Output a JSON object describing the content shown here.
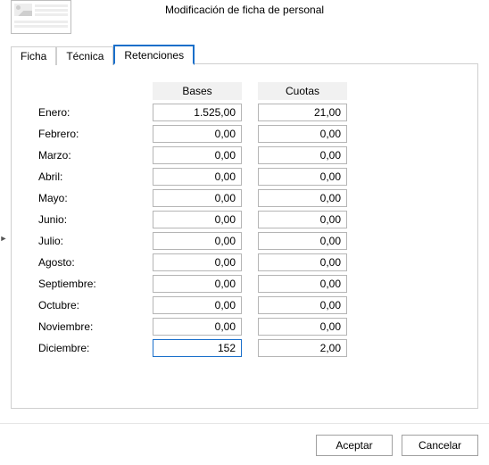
{
  "window": {
    "title": "Modificación de ficha de personal"
  },
  "tabs": {
    "items": [
      {
        "label": "Ficha",
        "active": false
      },
      {
        "label": "Técnica",
        "active": false
      },
      {
        "label": "Retenciones",
        "active": true
      }
    ]
  },
  "table": {
    "headers": {
      "bases": "Bases",
      "cuotas": "Cuotas"
    },
    "rows": [
      {
        "label": "Enero:",
        "bases": "1.525,00",
        "cuotas": "21,00"
      },
      {
        "label": "Febrero:",
        "bases": "0,00",
        "cuotas": "0,00"
      },
      {
        "label": "Marzo:",
        "bases": "0,00",
        "cuotas": "0,00"
      },
      {
        "label": "Abril:",
        "bases": "0,00",
        "cuotas": "0,00"
      },
      {
        "label": "Mayo:",
        "bases": "0,00",
        "cuotas": "0,00"
      },
      {
        "label": "Junio:",
        "bases": "0,00",
        "cuotas": "0,00"
      },
      {
        "label": "Julio:",
        "bases": "0,00",
        "cuotas": "0,00"
      },
      {
        "label": "Agosto:",
        "bases": "0,00",
        "cuotas": "0,00"
      },
      {
        "label": "Septiembre:",
        "bases": "0,00",
        "cuotas": "0,00"
      },
      {
        "label": "Octubre:",
        "bases": "0,00",
        "cuotas": "0,00"
      },
      {
        "label": "Noviembre:",
        "bases": "0,00",
        "cuotas": "0,00"
      },
      {
        "label": "Diciembre:",
        "bases": "152",
        "cuotas": "2,00",
        "bases_focused": true
      }
    ]
  },
  "buttons": {
    "accept": "Aceptar",
    "cancel": "Cancelar"
  },
  "colors": {
    "tab_active_border": "#1a6fca",
    "border_gray": "#cfcfcf",
    "header_bg": "#f1f1f1",
    "input_border": "#b5b5b5"
  }
}
